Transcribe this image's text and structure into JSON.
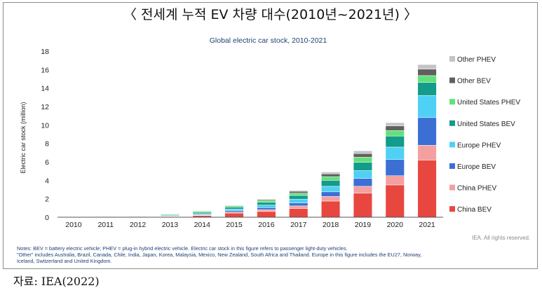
{
  "title": "〈 전세계 누적 EV 차량 대수(2010년~2021년) 〉",
  "source": "자료: IEA(2022)",
  "chart_data": {
    "type": "bar",
    "stacked": true,
    "title": "Global electric car stock, 2010-2021",
    "xlabel": "",
    "ylabel": "Electric car stock (million)",
    "ylim": [
      0,
      18
    ],
    "yticks": [
      0,
      2,
      4,
      6,
      8,
      10,
      12,
      14,
      16,
      18
    ],
    "grid": false,
    "legend_position": "right",
    "categories": [
      "2010",
      "2011",
      "2012",
      "2013",
      "2014",
      "2015",
      "2016",
      "2017",
      "2018",
      "2019",
      "2020",
      "2021"
    ],
    "series": [
      {
        "name": "China BEV",
        "color": "#e8473f",
        "values": [
          0.01,
          0.02,
          0.04,
          0.09,
          0.17,
          0.45,
          0.62,
          0.95,
          1.75,
          2.6,
          3.5,
          6.2
        ]
      },
      {
        "name": "China PHEV",
        "color": "#f4a0a0",
        "values": [
          0.0,
          0.0,
          0.01,
          0.02,
          0.05,
          0.1,
          0.2,
          0.28,
          0.5,
          0.75,
          1.0,
          1.6
        ]
      },
      {
        "name": "Europe BEV",
        "color": "#3b6fd4",
        "values": [
          0.0,
          0.01,
          0.02,
          0.04,
          0.08,
          0.15,
          0.22,
          0.33,
          0.5,
          0.85,
          1.75,
          3.0
        ]
      },
      {
        "name": "Europe PHEV",
        "color": "#4fd0f5",
        "values": [
          0.0,
          0.0,
          0.01,
          0.03,
          0.08,
          0.18,
          0.28,
          0.4,
          0.6,
          0.85,
          1.35,
          2.4
        ]
      },
      {
        "name": "United States BEV",
        "color": "#129c8a",
        "values": [
          0.0,
          0.01,
          0.04,
          0.09,
          0.15,
          0.2,
          0.3,
          0.4,
          0.65,
          0.9,
          1.2,
          1.4
        ]
      },
      {
        "name": "United States PHEV",
        "color": "#63e07a",
        "values": [
          0.0,
          0.01,
          0.03,
          0.08,
          0.12,
          0.15,
          0.2,
          0.25,
          0.4,
          0.55,
          0.6,
          0.75
        ]
      },
      {
        "name": "Other BEV",
        "color": "#606060",
        "values": [
          0.0,
          0.01,
          0.02,
          0.04,
          0.05,
          0.07,
          0.1,
          0.2,
          0.3,
          0.4,
          0.5,
          0.7
        ]
      },
      {
        "name": "Other PHEV",
        "color": "#c4c4c4",
        "values": [
          0.0,
          0.0,
          0.01,
          0.01,
          0.02,
          0.03,
          0.05,
          0.1,
          0.2,
          0.3,
          0.35,
          0.5
        ]
      }
    ]
  },
  "notes_line1": "Notes: BEV = battery electric vehicle; PHEV = plug-in hybrid electric vehicle. Electric car stock in this figure refers to passenger light-duty vehicles.",
  "notes_line2": "\"Other\" includes Australia, Brazil, Canada, Chile, India, Japan, Korea, Malaysia, Mexico, New Zealand, South Africa and Thailand. Europe in this figure includes the EU27, Norway,",
  "notes_line3": "Iceland, Switzerland and United Kingdom.",
  "rights": "IEA. All rights reserved."
}
